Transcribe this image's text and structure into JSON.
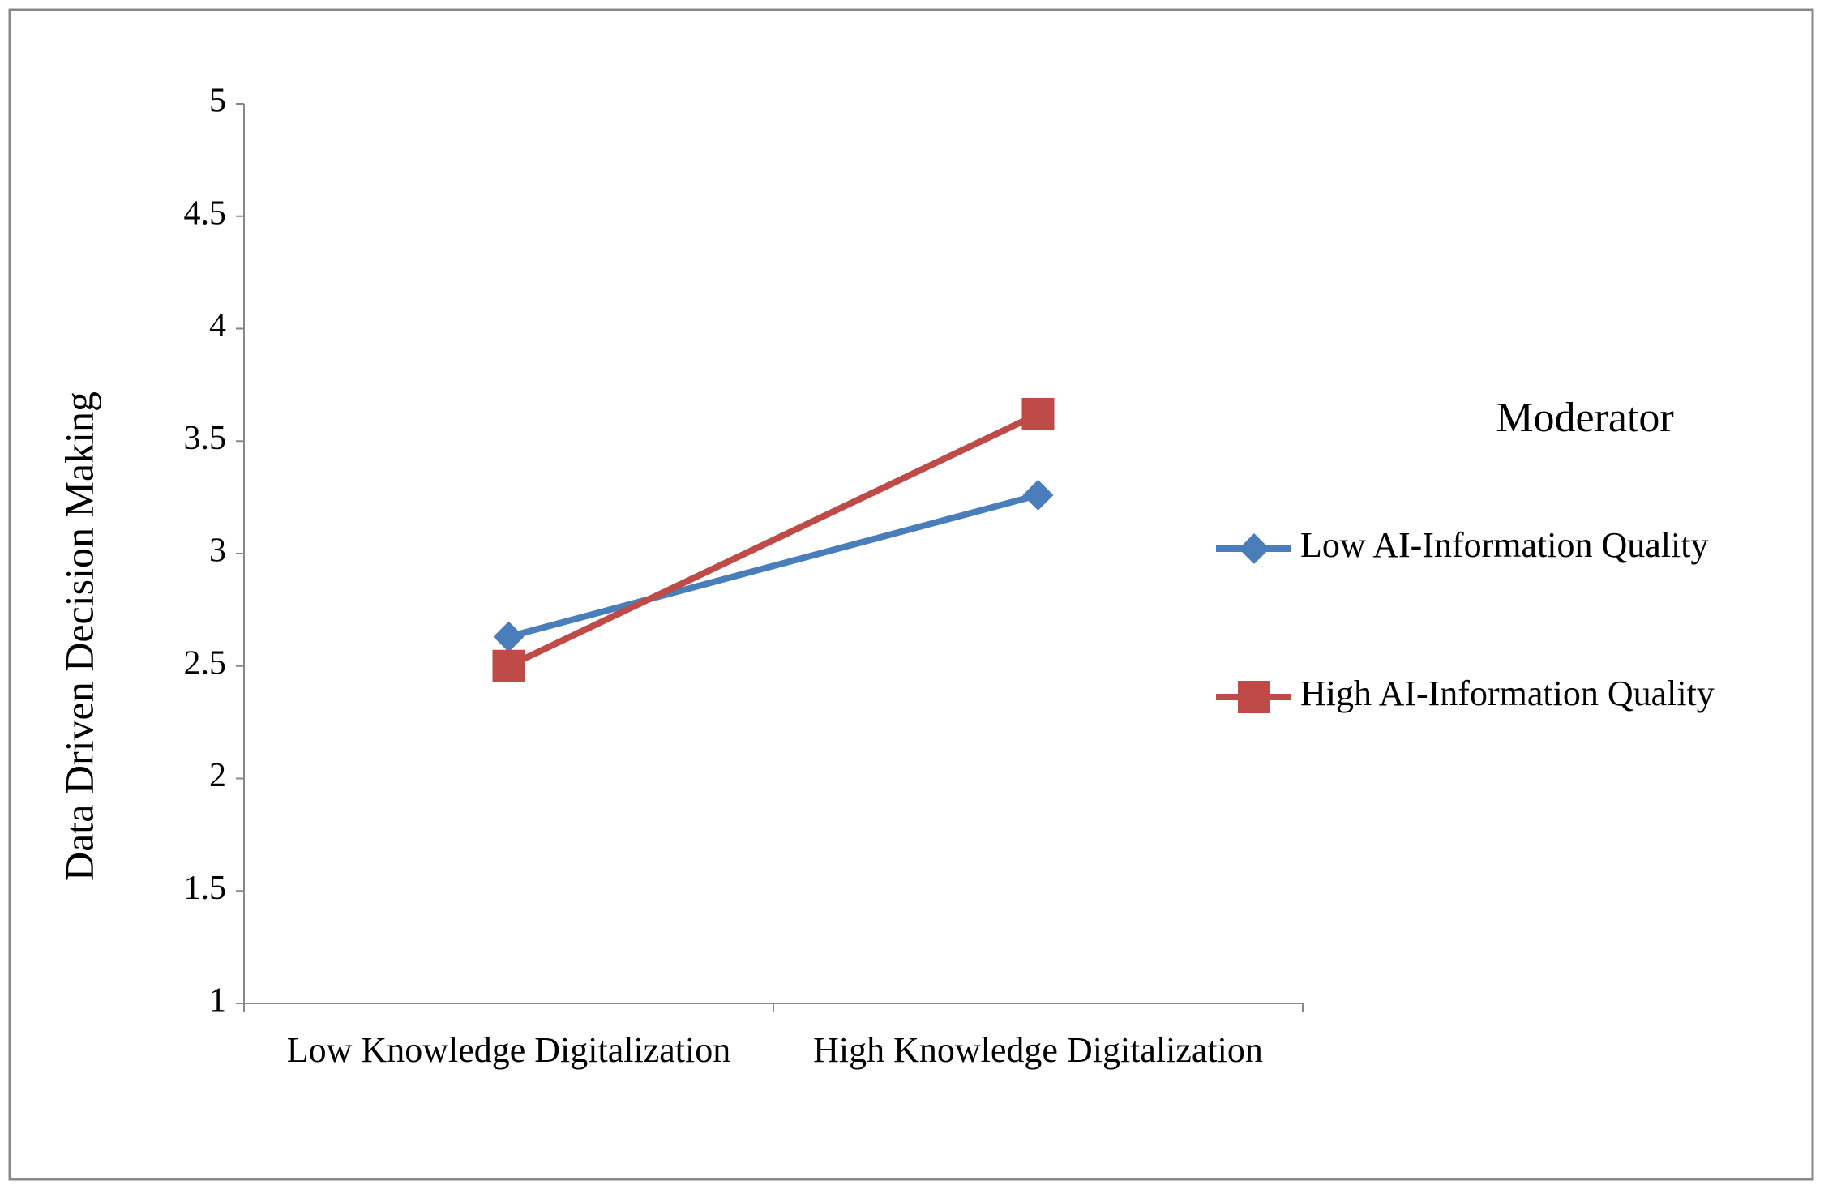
{
  "chart_data": {
    "type": "line",
    "y_label": "Data Driven Decision Making",
    "categories": [
      "Low Knowledge Digitalization",
      "High Knowledge Digitalization"
    ],
    "series": [
      {
        "name": "Low AI-Information Quality",
        "color": "#4a7ebb",
        "marker": "diamond",
        "values": [
          2.63,
          3.26
        ]
      },
      {
        "name": "High AI-Information Quality",
        "color": "#be4b48",
        "marker": "square",
        "values": [
          2.5,
          3.62
        ]
      }
    ],
    "legend_title": "Moderator",
    "legend": "right",
    "ylim": [
      1,
      5
    ],
    "yticks": [
      1,
      1.5,
      2,
      2.5,
      3,
      3.5,
      4,
      4.5,
      5
    ]
  }
}
